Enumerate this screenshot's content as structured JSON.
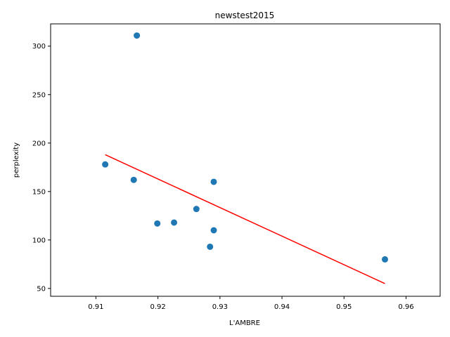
{
  "chart_data": {
    "type": "scatter",
    "title": "newstest2015",
    "xlabel": "L'AMBRE",
    "ylabel": "perplexity",
    "xlim": [
      0.9027,
      0.9655
    ],
    "ylim": [
      41.9,
      323.0
    ],
    "grid": false,
    "xticks": [
      0.91,
      0.92,
      0.93,
      0.94,
      0.95,
      0.96
    ],
    "yticks": [
      50,
      100,
      150,
      200,
      250,
      300
    ],
    "point_color": "#1f77b4",
    "line_color": "#ff0000",
    "series": [
      {
        "type": "scatter",
        "x": [
          0.9166,
          0.9115,
          0.9161,
          0.929,
          0.9262,
          0.9199,
          0.9226,
          0.929,
          0.9284,
          0.9566
        ],
        "y": [
          311,
          178,
          162,
          160,
          132,
          117,
          118,
          110,
          93,
          80
        ]
      },
      {
        "type": "line",
        "x": [
          0.9115,
          0.9566
        ],
        "y": [
          188,
          55
        ]
      }
    ]
  }
}
